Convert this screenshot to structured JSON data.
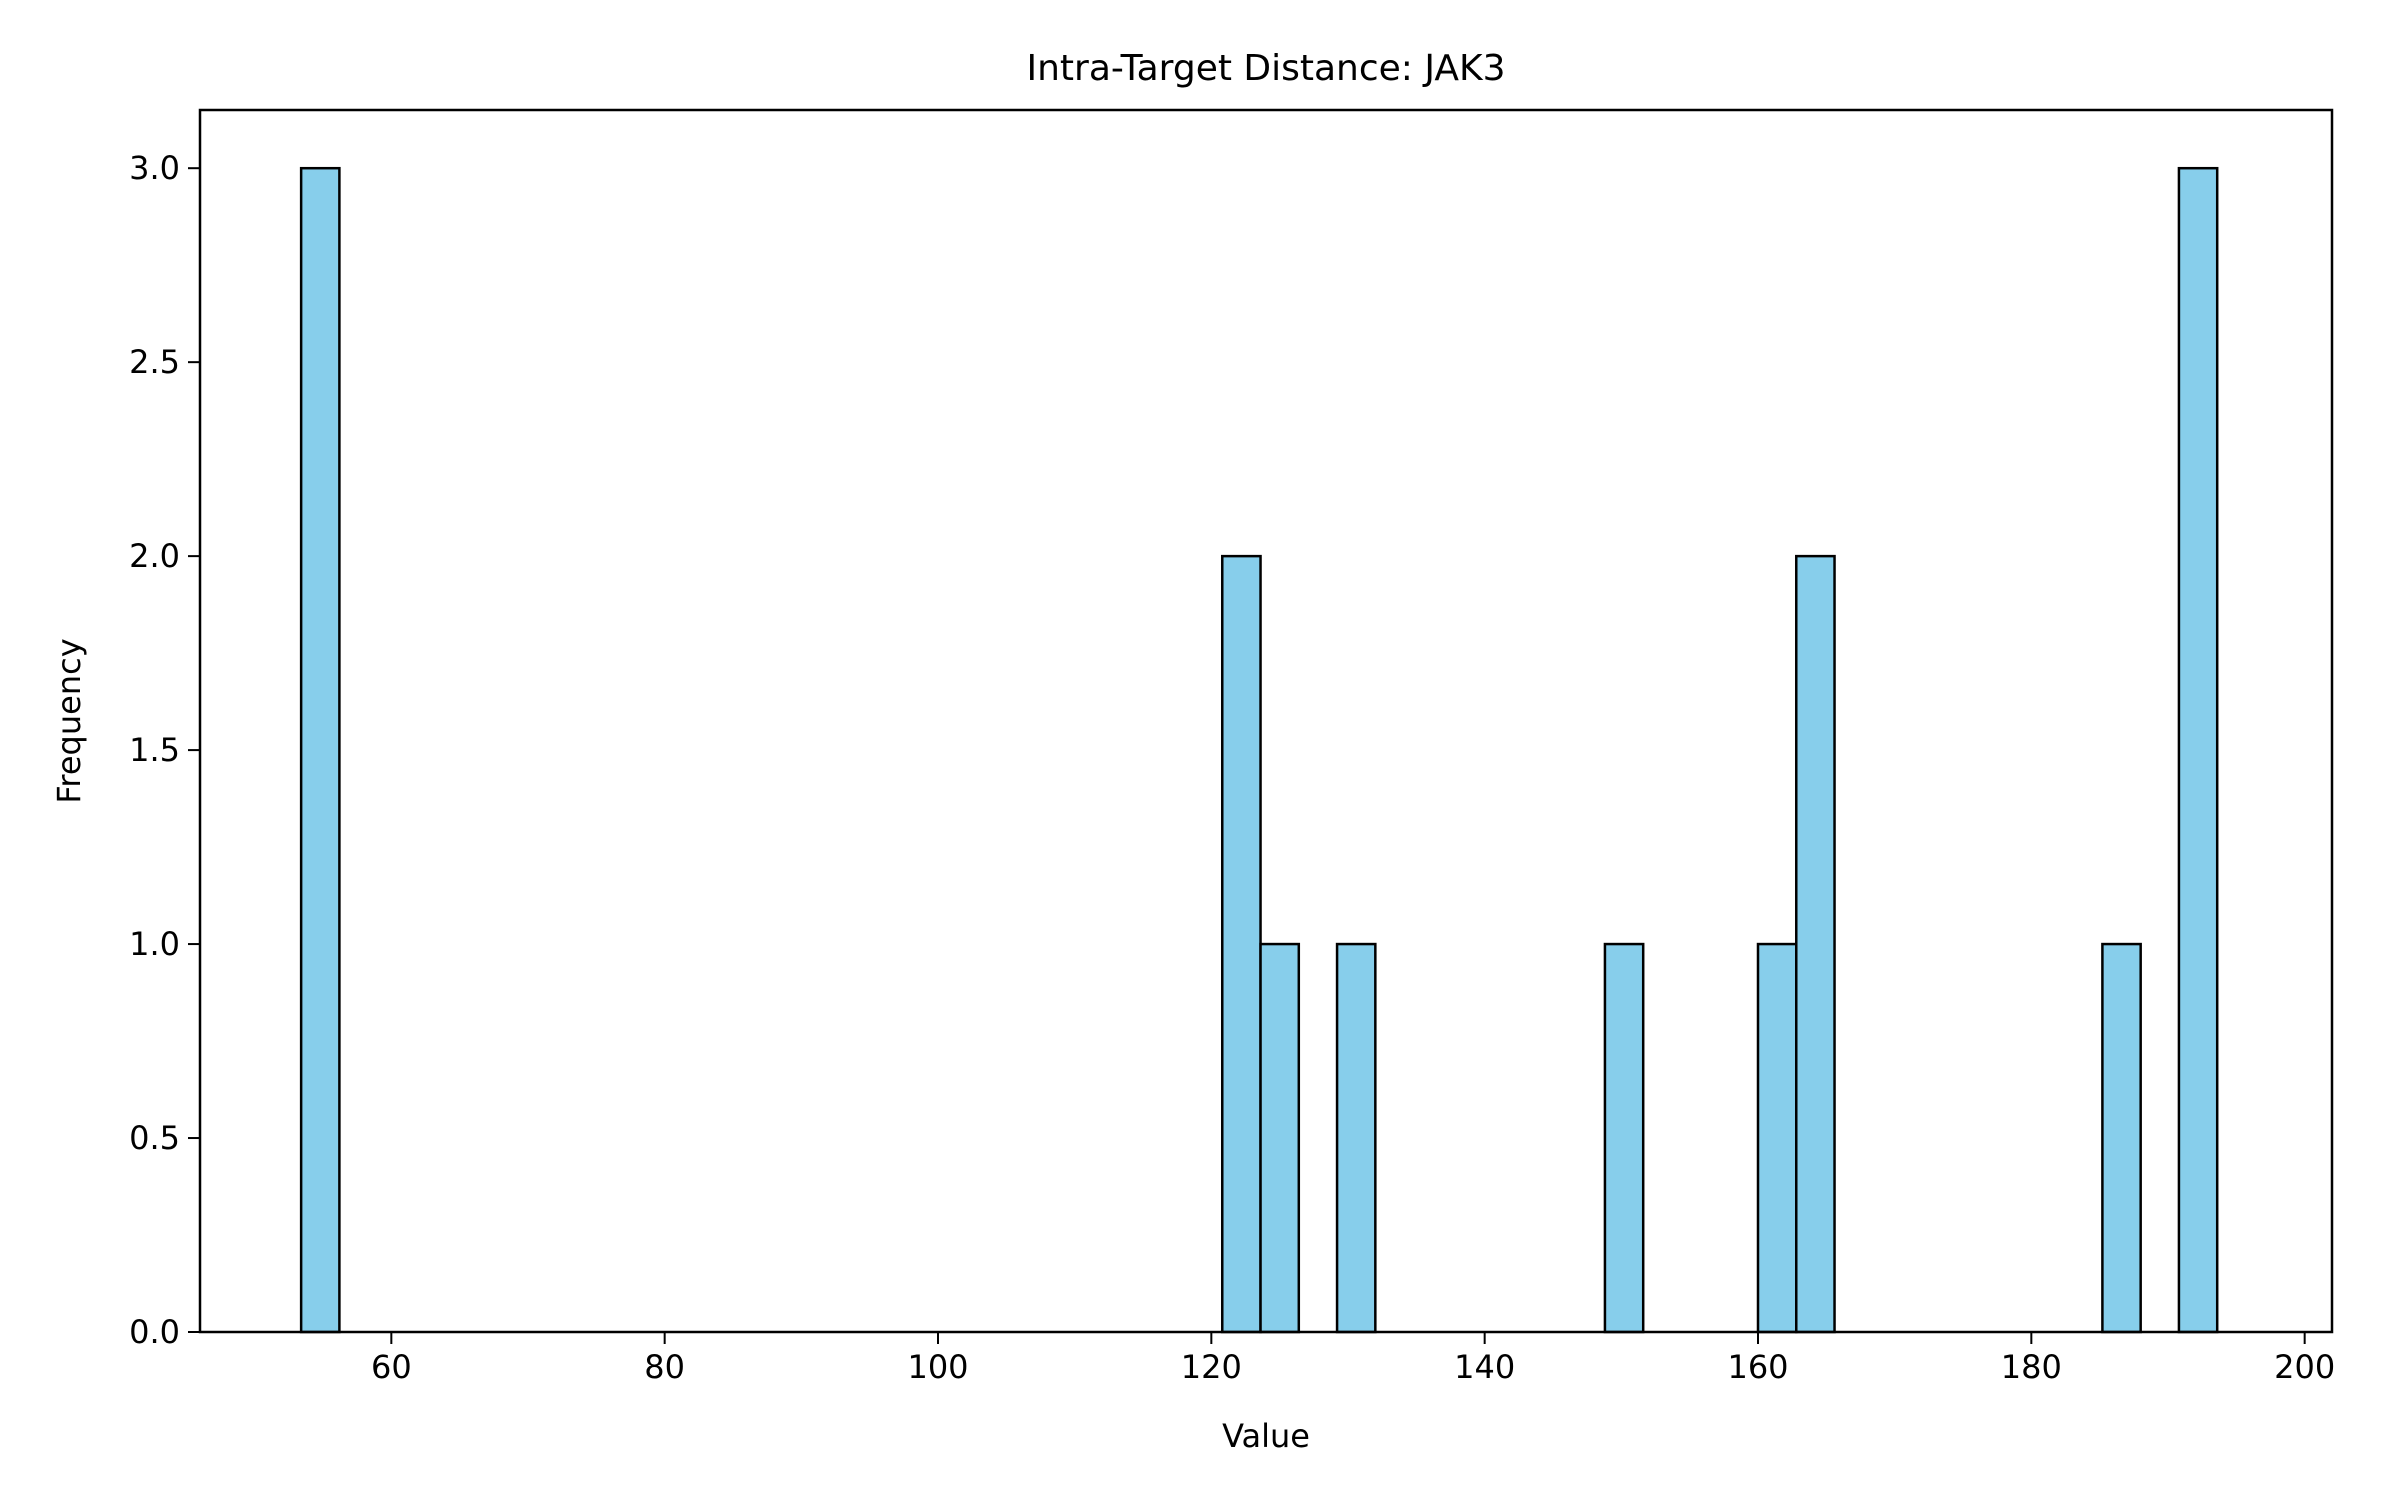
{
  "chart_data": {
    "type": "histogram",
    "title": "Intra-Target Distance: JAK3",
    "xlabel": "Value",
    "ylabel": "Frequency",
    "xlim": [
      46,
      202
    ],
    "ylim": [
      0,
      3.15
    ],
    "x_ticks": [
      60,
      80,
      100,
      120,
      140,
      160,
      180,
      200
    ],
    "x_tick_labels": [
      "60",
      "80",
      "100",
      "120",
      "140",
      "160",
      "180",
      "200"
    ],
    "y_ticks": [
      0,
      0.5,
      1,
      1.5,
      2,
      2.5,
      3
    ],
    "y_tick_labels": [
      "0.0",
      "0.5",
      "1.0",
      "1.5",
      "2.0",
      "2.5",
      "3.0"
    ],
    "bin_width": 2.8,
    "bars": [
      {
        "x0": 53.4,
        "x1": 56.2,
        "value": 3
      },
      {
        "x0": 120.8,
        "x1": 123.6,
        "value": 2
      },
      {
        "x0": 123.6,
        "x1": 126.4,
        "value": 1
      },
      {
        "x0": 129.2,
        "x1": 132.0,
        "value": 1
      },
      {
        "x0": 148.8,
        "x1": 151.6,
        "value": 1
      },
      {
        "x0": 160.0,
        "x1": 162.8,
        "value": 1
      },
      {
        "x0": 162.8,
        "x1": 165.6,
        "value": 2
      },
      {
        "x0": 185.2,
        "x1": 188.0,
        "value": 1
      },
      {
        "x0": 190.8,
        "x1": 193.6,
        "value": 3
      }
    ],
    "bar_color": "#87CEEB",
    "edge_color": "#000000",
    "grid": false,
    "legend": "none"
  }
}
